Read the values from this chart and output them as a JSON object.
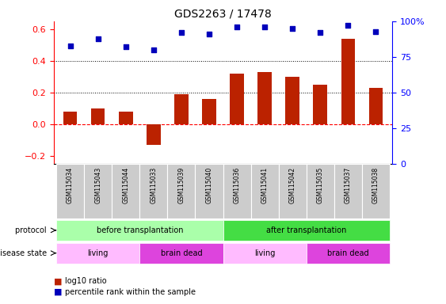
{
  "title": "GDS2263 / 17478",
  "samples": [
    "GSM115034",
    "GSM115043",
    "GSM115044",
    "GSM115033",
    "GSM115039",
    "GSM115040",
    "GSM115036",
    "GSM115041",
    "GSM115042",
    "GSM115035",
    "GSM115037",
    "GSM115038"
  ],
  "log10_ratio": [
    0.08,
    0.1,
    0.08,
    -0.13,
    0.19,
    0.16,
    0.32,
    0.33,
    0.3,
    0.25,
    0.54,
    0.23
  ],
  "percentile_rank": [
    83,
    88,
    82,
    80,
    92,
    91,
    96,
    96,
    95,
    92,
    97,
    93
  ],
  "bar_color": "#bb2200",
  "dot_color": "#0000bb",
  "ylim_left": [
    -0.25,
    0.65
  ],
  "ylim_right": [
    0,
    100
  ],
  "yticks_left": [
    -0.2,
    0.0,
    0.2,
    0.4,
    0.6
  ],
  "yticks_right": [
    0,
    25,
    50,
    75,
    100
  ],
  "hlines": [
    0.2,
    0.4
  ],
  "protocol_groups": [
    {
      "label": "before transplantation",
      "start": 0,
      "end": 6,
      "color": "#aaffaa"
    },
    {
      "label": "after transplantation",
      "start": 6,
      "end": 12,
      "color": "#44dd44"
    }
  ],
  "disease_groups": [
    {
      "label": "living",
      "start": 0,
      "end": 3,
      "color": "#ffbbff"
    },
    {
      "label": "brain dead",
      "start": 3,
      "end": 6,
      "color": "#dd44dd"
    },
    {
      "label": "living",
      "start": 6,
      "end": 9,
      "color": "#ffbbff"
    },
    {
      "label": "brain dead",
      "start": 9,
      "end": 12,
      "color": "#dd44dd"
    }
  ],
  "legend_items": [
    {
      "label": "log10 ratio",
      "color": "#bb2200"
    },
    {
      "label": "percentile rank within the sample",
      "color": "#0000bb"
    }
  ],
  "protocol_label": "protocol",
  "disease_label": "disease state",
  "sample_bg_color": "#cccccc",
  "sample_bg_edge": "#ffffff"
}
